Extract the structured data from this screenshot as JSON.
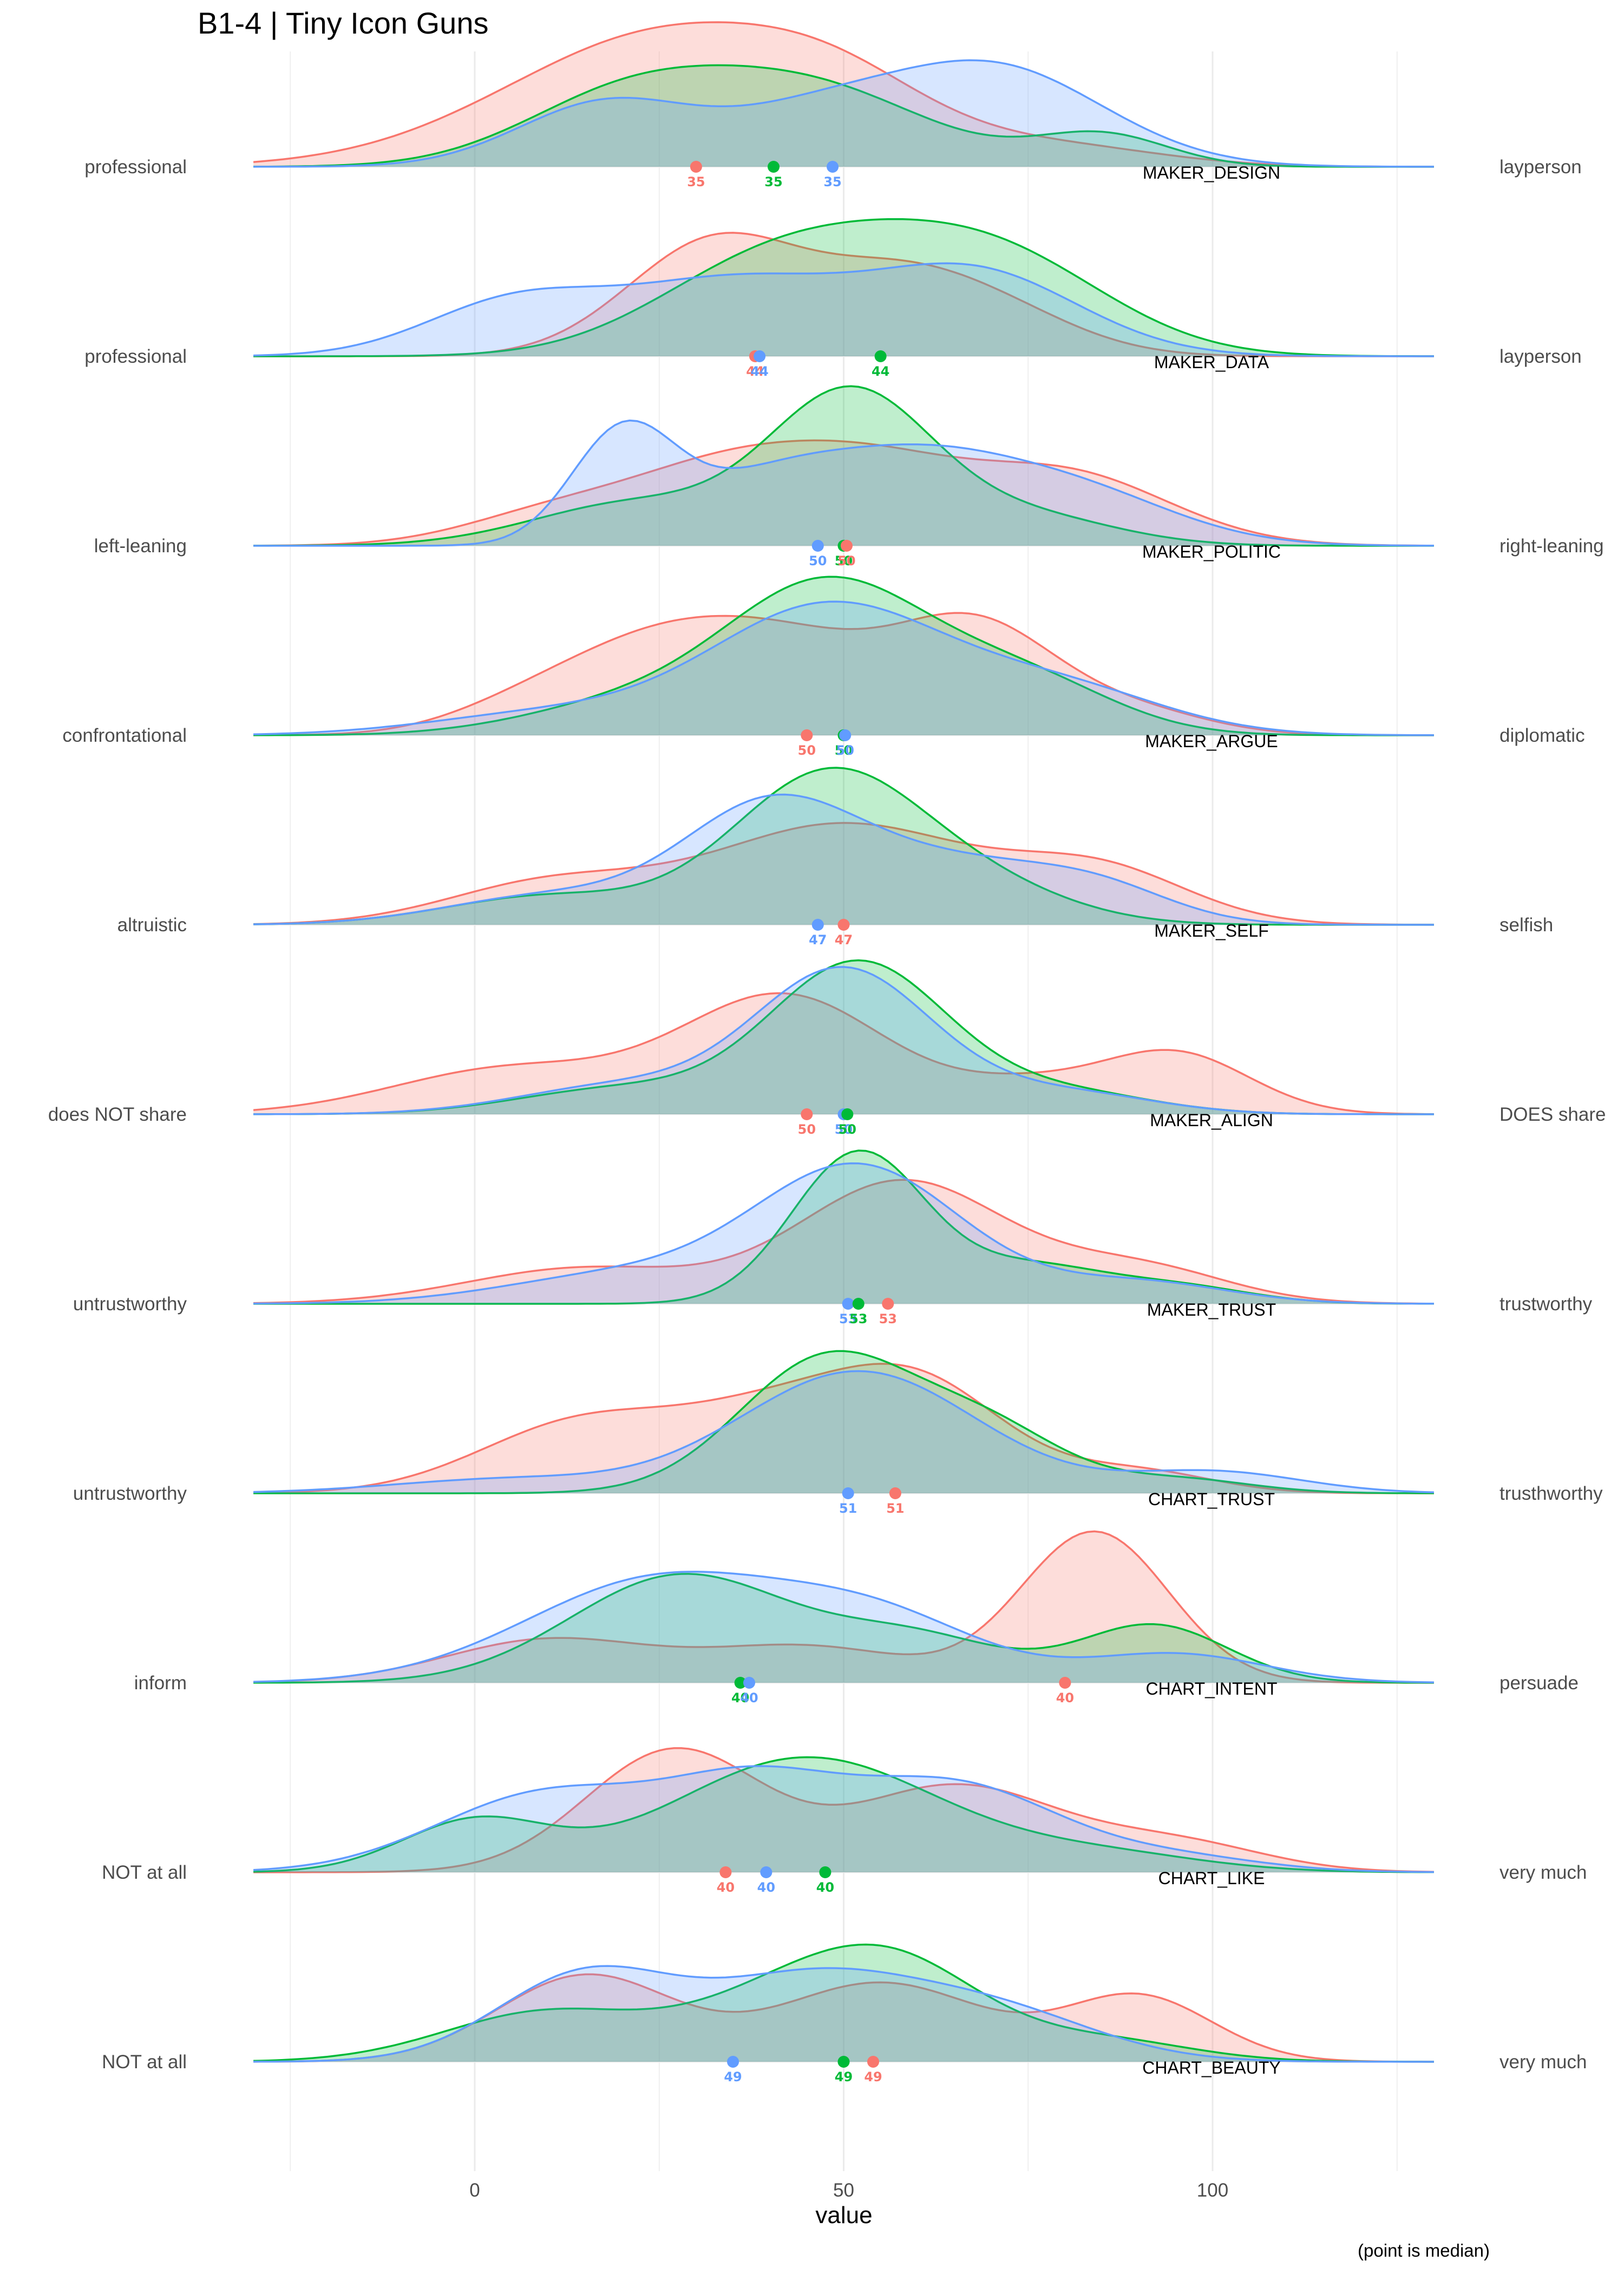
{
  "chart_data": {
    "type": "ridgeline",
    "title": "B1-4 | Tiny Icon Guns",
    "xlabel": "value",
    "caption": "(point is median)",
    "xlim": [
      -30,
      130
    ],
    "x_ticks": [
      0,
      50,
      100
    ],
    "grid": true,
    "series_colors": [
      "#F8766D",
      "#00BA38",
      "#619CFF"
    ],
    "rows": [
      {
        "name": "MAKER_DESIGN",
        "left": "professional",
        "right": "layperson",
        "densities": [
          {
            "color": "#F8766D",
            "peaks": [
              [
                27,
                0.95,
                22
              ],
              [
                50,
                0.25,
                12
              ],
              [
                80,
                0.12,
                14
              ]
            ]
          },
          {
            "color": "#00BA38",
            "peaks": [
              [
                20,
                0.45,
                14
              ],
              [
                45,
                0.55,
                16
              ],
              [
                85,
                0.22,
                9
              ]
            ]
          },
          {
            "color": "#619CFF",
            "peaks": [
              [
                18,
                0.45,
                12
              ],
              [
                45,
                0.3,
                12
              ],
              [
                70,
                0.7,
                15
              ]
            ]
          }
        ],
        "medians": [
          {
            "color": "#F8766D",
            "x": 30,
            "label": "35"
          },
          {
            "color": "#00BA38",
            "x": 40.5,
            "label": "35"
          },
          {
            "color": "#619CFF",
            "x": 48.5,
            "label": "35"
          }
        ]
      },
      {
        "name": "MAKER_DATA",
        "left": "professional",
        "right": "layperson",
        "densities": [
          {
            "color": "#F8766D",
            "peaks": [
              [
                33,
                0.82,
                12
              ],
              [
                55,
                0.32,
                10
              ],
              [
                68,
                0.38,
                12
              ]
            ]
          },
          {
            "color": "#00BA38",
            "peaks": [
              [
                35,
                0.3,
                14
              ],
              [
                55,
                0.72,
                18
              ],
              [
                75,
                0.35,
                14
              ]
            ]
          },
          {
            "color": "#619CFF",
            "peaks": [
              [
                5,
                0.35,
                12
              ],
              [
                35,
                0.52,
                16
              ],
              [
                68,
                0.57,
                14
              ]
            ]
          }
        ],
        "medians": [
          {
            "color": "#F8766D",
            "x": 38,
            "label": "44"
          },
          {
            "color": "#619CFF",
            "x": 38.6,
            "label": "44"
          },
          {
            "color": "#00BA38",
            "x": 55,
            "label": "44"
          }
        ]
      },
      {
        "name": "MAKER_POLITIC",
        "left": "left-leaning",
        "right": "right-leaning",
        "densities": [
          {
            "color": "#F8766D",
            "peaks": [
              [
                10,
                0.2,
                12
              ],
              [
                35,
                0.55,
                14
              ],
              [
                55,
                0.4,
                12
              ],
              [
                80,
                0.5,
                14
              ]
            ]
          },
          {
            "color": "#00BA38",
            "peaks": [
              [
                22,
                0.3,
                14
              ],
              [
                51,
                1.05,
                11
              ],
              [
                75,
                0.2,
                12
              ]
            ]
          },
          {
            "color": "#619CFF",
            "peaks": [
              [
                20,
                0.75,
                7
              ],
              [
                40,
                0.45,
                12
              ],
              [
                60,
                0.45,
                12
              ],
              [
                80,
                0.4,
                14
              ]
            ]
          }
        ],
        "medians": [
          {
            "color": "#619CFF",
            "x": 46.5,
            "label": "50"
          },
          {
            "color": "#00BA38",
            "x": 50,
            "label": "50"
          },
          {
            "color": "#F8766D",
            "x": 50.4,
            "label": "50"
          }
        ]
      },
      {
        "name": "MAKER_ARGUE",
        "left": "confrontational",
        "right": "diplomatic",
        "densities": [
          {
            "color": "#F8766D",
            "peaks": [
              [
                5,
                0.1,
                10
              ],
              [
                25,
                0.65,
                14
              ],
              [
                45,
                0.45,
                12
              ],
              [
                68,
                0.75,
                11
              ],
              [
                90,
                0.15,
                10
              ]
            ]
          },
          {
            "color": "#00BA38",
            "peaks": [
              [
                20,
                0.2,
                14
              ],
              [
                48,
                1.05,
                14
              ],
              [
                75,
                0.35,
                12
              ]
            ]
          },
          {
            "color": "#619CFF",
            "peaks": [
              [
                10,
                0.15,
                16
              ],
              [
                48,
                0.9,
                16
              ],
              [
                80,
                0.3,
                14
              ]
            ]
          }
        ],
        "medians": [
          {
            "color": "#F8766D",
            "x": 45,
            "label": "50"
          },
          {
            "color": "#00BA38",
            "x": 50,
            "label": "50"
          },
          {
            "color": "#619CFF",
            "x": 50.2,
            "label": "50"
          }
        ]
      },
      {
        "name": "MAKER_SELF",
        "left": "altruistic",
        "right": "selfish",
        "densities": [
          {
            "color": "#F8766D",
            "peaks": [
              [
                10,
                0.28,
                14
              ],
              [
                50,
                0.7,
                18
              ],
              [
                85,
                0.35,
                12
              ]
            ]
          },
          {
            "color": "#00BA38",
            "peaks": [
              [
                10,
                0.2,
                14
              ],
              [
                48,
                1.05,
                13
              ],
              [
                70,
                0.2,
                12
              ]
            ]
          },
          {
            "color": "#619CFF",
            "peaks": [
              [
                10,
                0.2,
                14
              ],
              [
                40,
                0.8,
                12
              ],
              [
                65,
                0.4,
                14
              ],
              [
                85,
                0.2,
                10
              ]
            ]
          }
        ],
        "medians": [
          {
            "color": "#619CFF",
            "x": 46.5,
            "label": "47"
          },
          {
            "color": "#F8766D",
            "x": 50,
            "label": "47"
          }
        ]
      },
      {
        "name": "MAKER_ALIGN",
        "left": "does NOT share",
        "right": "DOES share",
        "densities": [
          {
            "color": "#F8766D",
            "peaks": [
              [
                5,
                0.32,
                16
              ],
              [
                42,
                0.82,
                14
              ],
              [
                75,
                0.18,
                10
              ],
              [
                95,
                0.42,
                10
              ]
            ]
          },
          {
            "color": "#00BA38",
            "peaks": [
              [
                20,
                0.18,
                14
              ],
              [
                52,
                1.05,
                12
              ],
              [
                80,
                0.15,
                12
              ]
            ]
          },
          {
            "color": "#619CFF",
            "peaks": [
              [
                20,
                0.2,
                14
              ],
              [
                50,
                1.0,
                12
              ],
              [
                80,
                0.15,
                12
              ]
            ]
          }
        ],
        "medians": [
          {
            "color": "#F8766D",
            "x": 45,
            "label": "50"
          },
          {
            "color": "#619CFF",
            "x": 50,
            "label": "50"
          },
          {
            "color": "#00BA38",
            "x": 50.5,
            "label": "50"
          }
        ]
      },
      {
        "name": "MAKER_TRUST",
        "left": "untrustworthy",
        "right": "trustworthy",
        "densities": [
          {
            "color": "#F8766D",
            "peaks": [
              [
                15,
                0.25,
                16
              ],
              [
                58,
                0.85,
                14
              ],
              [
                90,
                0.25,
                12
              ]
            ]
          },
          {
            "color": "#00BA38",
            "peaks": [
              [
                52,
                1.05,
                9
              ],
              [
                75,
                0.25,
                10
              ],
              [
                95,
                0.12,
                10
              ]
            ]
          },
          {
            "color": "#619CFF",
            "peaks": [
              [
                20,
                0.2,
                16
              ],
              [
                52,
                0.95,
                14
              ],
              [
                90,
                0.15,
                12
              ]
            ]
          }
        ],
        "medians": [
          {
            "color": "#619CFF",
            "x": 50.6,
            "label": "53"
          },
          {
            "color": "#00BA38",
            "x": 52,
            "label": "53"
          },
          {
            "color": "#F8766D",
            "x": 56,
            "label": "53"
          }
        ]
      },
      {
        "name": "CHART_TRUST",
        "left": "untrustworthy",
        "right": "trusthworthy",
        "densities": [
          {
            "color": "#F8766D",
            "peaks": [
              [
                15,
                0.5,
                14
              ],
              [
                40,
                0.45,
                12
              ],
              [
                60,
                0.75,
                12
              ],
              [
                90,
                0.15,
                10
              ]
            ]
          },
          {
            "color": "#00BA38",
            "peaks": [
              [
                48,
                0.95,
                12
              ],
              [
                70,
                0.4,
                10
              ],
              [
                95,
                0.1,
                10
              ]
            ]
          },
          {
            "color": "#619CFF",
            "peaks": [
              [
                5,
                0.1,
                16
              ],
              [
                52,
                0.85,
                16
              ],
              [
                100,
                0.15,
                12
              ]
            ]
          }
        ],
        "medians": [
          {
            "color": "#619CFF",
            "x": 50.6,
            "label": "51"
          },
          {
            "color": "#F8766D",
            "x": 57,
            "label": "51"
          }
        ]
      },
      {
        "name": "CHART_INTENT",
        "left": "inform",
        "right": "persuade",
        "densities": [
          {
            "color": "#F8766D",
            "peaks": [
              [
                10,
                0.3,
                14
              ],
              [
                45,
                0.25,
                14
              ],
              [
                84,
                1.05,
                10
              ]
            ]
          },
          {
            "color": "#00BA38",
            "peaks": [
              [
                28,
                0.75,
                15
              ],
              [
                60,
                0.3,
                12
              ],
              [
                92,
                0.4,
                10
              ]
            ]
          },
          {
            "color": "#619CFF",
            "peaks": [
              [
                25,
                0.72,
                18
              ],
              [
                55,
                0.4,
                14
              ],
              [
                95,
                0.2,
                12
              ]
            ]
          }
        ],
        "medians": [
          {
            "color": "#00BA38",
            "x": 36,
            "label": "40"
          },
          {
            "color": "#619CFF",
            "x": 37.2,
            "label": "40"
          },
          {
            "color": "#F8766D",
            "x": 80,
            "label": "40"
          }
        ]
      },
      {
        "name": "CHART_LIKE",
        "left": "NOT at all",
        "right": "very much",
        "densities": [
          {
            "color": "#F8766D",
            "peaks": [
              [
                27,
                0.85,
                12
              ],
              [
                65,
                0.6,
                14
              ],
              [
                95,
                0.2,
                12
              ]
            ]
          },
          {
            "color": "#00BA38",
            "peaks": [
              [
                0,
                0.35,
                10
              ],
              [
                45,
                0.8,
                18
              ],
              [
                85,
                0.12,
                14
              ]
            ]
          },
          {
            "color": "#619CFF",
            "peaks": [
              [
                10,
                0.55,
                15
              ],
              [
                38,
                0.55,
                12
              ],
              [
                65,
                0.6,
                14
              ],
              [
                95,
                0.1,
                12
              ]
            ]
          }
        ],
        "medians": [
          {
            "color": "#F8766D",
            "x": 34,
            "label": "40"
          },
          {
            "color": "#619CFF",
            "x": 39.5,
            "label": "40"
          },
          {
            "color": "#00BA38",
            "x": 47.5,
            "label": "40"
          }
        ]
      },
      {
        "name": "CHART_BEAUTY",
        "left": "NOT at all",
        "right": "very much",
        "densities": [
          {
            "color": "#F8766D",
            "peaks": [
              [
                15,
                0.6,
                12
              ],
              [
                55,
                0.55,
                14
              ],
              [
                90,
                0.45,
                10
              ]
            ]
          },
          {
            "color": "#00BA38",
            "peaks": [
              [
                10,
                0.35,
                14
              ],
              [
                40,
                0.35,
                12
              ],
              [
                57,
                0.65,
                12
              ],
              [
                85,
                0.15,
                12
              ]
            ]
          },
          {
            "color": "#619CFF",
            "peaks": [
              [
                15,
                0.6,
                12
              ],
              [
                45,
                0.55,
                14
              ],
              [
                70,
                0.35,
                14
              ]
            ]
          }
        ],
        "medians": [
          {
            "color": "#619CFF",
            "x": 35,
            "label": "49"
          },
          {
            "color": "#00BA38",
            "x": 50,
            "label": "49"
          },
          {
            "color": "#F8766D",
            "x": 54,
            "label": "49"
          }
        ]
      }
    ]
  }
}
